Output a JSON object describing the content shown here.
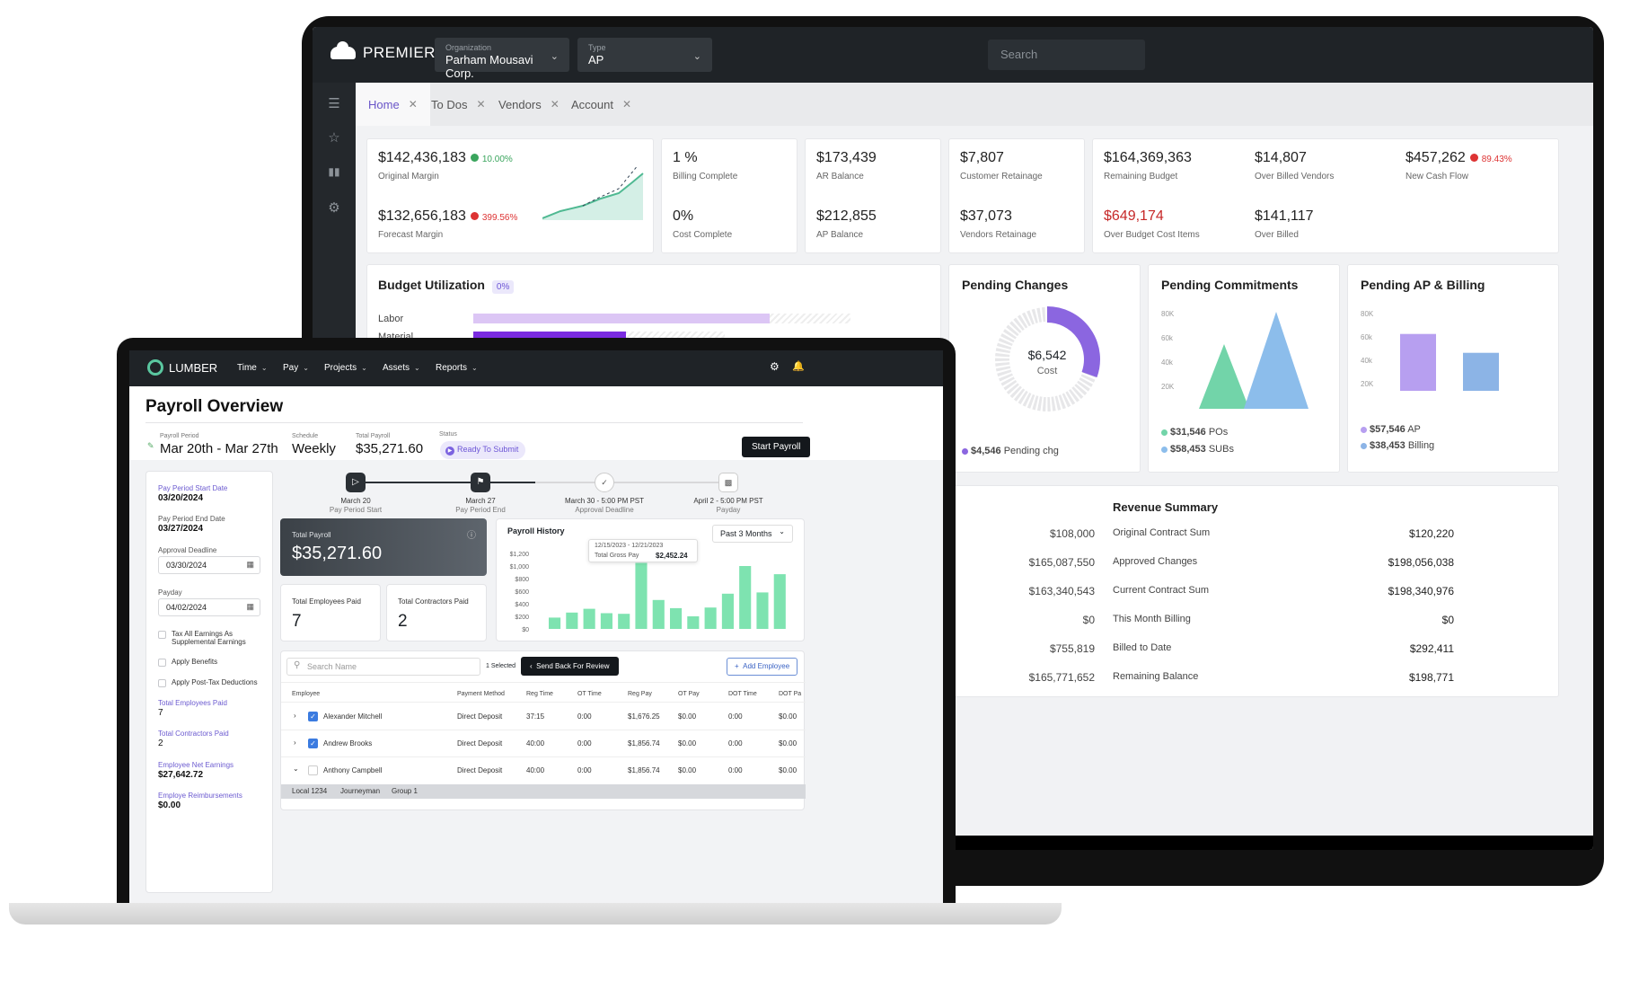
{
  "premier": {
    "brand": "PREMIER",
    "org_label": "Organization",
    "org_value": "Parham Mousavi Corp.",
    "type_label": "Type",
    "type_value": "AP",
    "search_placeholder": "Search",
    "tabs": [
      {
        "label": "Home",
        "active": true
      },
      {
        "label": "To Dos",
        "active": false
      },
      {
        "label": "Vendors",
        "active": false
      },
      {
        "label": "Account",
        "active": false
      }
    ],
    "kpi": {
      "original_margin": {
        "value": "$142,436,183",
        "label": "Original Margin",
        "pct": "10.00%"
      },
      "forecast_margin": {
        "value": "$132,656,183",
        "label": "Forecast Margin",
        "pct": "399.56%"
      },
      "billing_complete": {
        "value": "1 %",
        "label": "Billing Complete"
      },
      "cost_complete": {
        "value": "0%",
        "label": "Cost Complete"
      },
      "ar_balance": {
        "value": "$173,439",
        "label": "AR Balance"
      },
      "ap_balance": {
        "value": "$212,855",
        "label": "AP Balance"
      },
      "customer_retainage": {
        "value": "$7,807",
        "label": "Customer Retainage"
      },
      "vendors_retainage": {
        "value": "$37,073",
        "label": "Vendors Retainage"
      },
      "remaining_budget": {
        "value": "$164,369,363",
        "label": "Remaining Budget"
      },
      "over_budget_cost": {
        "value": "$649,174",
        "label": "Over Budget Cost Items"
      },
      "over_billed_vendors": {
        "value": "$14,807",
        "label": "Over Billed Vendors"
      },
      "over_billed": {
        "value": "$141,117",
        "label": "Over Billed"
      },
      "new_cash_flow": {
        "value": "$457,262",
        "label": "New Cash Flow",
        "pct": "89.43%"
      }
    },
    "budget": {
      "title": "Budget Utilization",
      "badge": "0%",
      "rows": [
        "Labor",
        "Material"
      ]
    },
    "pending_changes": {
      "title": "Pending Changes",
      "center_value": "$6,542",
      "center_label": "Cost",
      "legend": "$4,546",
      "legend_label": "Pending chg"
    },
    "pending_commitments": {
      "title": "Pending Commitments",
      "axis": [
        "80K",
        "60k",
        "40k",
        "20K"
      ],
      "legend1_v": "$31,546",
      "legend1_l": "POs",
      "legend2_v": "$58,453",
      "legend2_l": "SUBs"
    },
    "pending_ap": {
      "title": "Pending AP & Billing",
      "axis": [
        "80K",
        "60k",
        "40k",
        "20K"
      ],
      "legend1_v": "$57,546",
      "legend1_l": "AP",
      "legend2_v": "$38,453",
      "legend2_l": "Billing"
    },
    "left_values": [
      "$108,000",
      "$165,087,550",
      "$163,340,543",
      "$0",
      "$755,819",
      "$165,771,652"
    ],
    "revenue": {
      "title": "Revenue Summary",
      "rows": [
        {
          "label": "Original Contract Sum",
          "value": "$120,220"
        },
        {
          "label": "Approved Changes",
          "value": "$198,056,038"
        },
        {
          "label": "Current Contract Sum",
          "value": "$198,340,976"
        },
        {
          "label": "This Month Billing",
          "value": "$0"
        },
        {
          "label": "Billed to Date",
          "value": "$292,411"
        },
        {
          "label": "Remaining Balance",
          "value": "$198,771"
        }
      ]
    }
  },
  "lumber": {
    "brand": "LUMBER",
    "menu": [
      "Time",
      "Pay",
      "Projects",
      "Assets",
      "Reports"
    ],
    "title": "Payroll Overview",
    "period_label": "Payroll Period",
    "period_value": "Mar 20th - Mar 27th",
    "schedule_label": "Schedule",
    "schedule_value": "Weekly",
    "total_label": "Total Payroll",
    "total_value": "$35,271.60",
    "status_label": "Status",
    "status_value": "Ready To Submit",
    "start_button": "Start Payroll",
    "side": {
      "start_label": "Pay Period Start Date",
      "start_value": "03/20/2024",
      "end_label": "Pay Period End Date",
      "end_value": "03/27/2024",
      "approval_label": "Approval Deadline",
      "approval_value": "03/30/2024",
      "payday_label": "Payday",
      "payday_value": "04/02/2024",
      "cb1": "Tax All Earnings As Supplemental Earnings",
      "cb2": "Apply Benefits",
      "cb3": "Apply Post-Tax Deductions",
      "emp_label": "Total Employees Paid",
      "emp_value": "7",
      "con_label": "Total Contractors Paid",
      "con_value": "2",
      "net_label": "Employee Net Earnings",
      "net_value": "$27,642.72",
      "reimb_label": "Employe Reimbursements",
      "reimb_value": "$0.00"
    },
    "steps": [
      {
        "date": "March 20",
        "label": "Pay Period Start"
      },
      {
        "date": "March 27",
        "label": "Pay Period End"
      },
      {
        "date": "March 30 - 5:00 PM PST",
        "label": "Approval Deadline"
      },
      {
        "date": "April 2 - 5:00 PM PST",
        "label": "Payday"
      }
    ],
    "total_card_label": "Total Payroll",
    "total_card_value": "$35,271.60",
    "employees_paid_label": "Total Employees Paid",
    "employees_paid_value": "7",
    "contractors_paid_label": "Total Contractors Paid",
    "contractors_paid_value": "2",
    "history": {
      "title": "Payroll History",
      "range": "Past 3 Months",
      "tooltip_dates": "12/15/2023 - 12/21/2023",
      "tooltip_label": "Total Gross Pay",
      "tooltip_value": "$2,452.24",
      "axis": [
        "$1,200",
        "$1,000",
        "$800",
        "$600",
        "$400",
        "$200",
        "$0"
      ]
    },
    "table": {
      "search_placeholder": "Search Name",
      "selected": "1 Selected",
      "send_back": "Send Back For Review",
      "add_employee": "Add Employee",
      "headers": [
        "Employee",
        "Payment Method",
        "Reg Time",
        "OT Time",
        "Reg Pay",
        "OT Pay",
        "DOT Time",
        "DOT Pa"
      ],
      "rows": [
        {
          "name": "Alexander Mitchell",
          "method": "Direct Deposit",
          "reg_time": "37:15",
          "ot_time": "0:00",
          "reg_pay": "$1,676.25",
          "ot_pay": "$0.00",
          "dot_time": "0:00",
          "dot_pay": "$0.00"
        },
        {
          "name": "Andrew Brooks",
          "method": "Direct Deposit",
          "reg_time": "40:00",
          "ot_time": "0:00",
          "reg_pay": "$1,856.74",
          "ot_pay": "$0.00",
          "dot_time": "0:00",
          "dot_pay": "$0.00"
        },
        {
          "name": "Anthony Campbell",
          "method": "Direct Deposit",
          "reg_time": "40:00",
          "ot_time": "0:00",
          "reg_pay": "$1,856.74",
          "ot_pay": "$0.00",
          "dot_time": "0:00",
          "dot_pay": "$0.00"
        }
      ],
      "subrow": [
        "Local 1234",
        "Journeyman",
        "Group 1"
      ]
    }
  },
  "chart_data": [
    {
      "type": "bar",
      "title": "Payroll History",
      "ylim": [
        0,
        1200
      ],
      "values": [
        180,
        260,
        320,
        250,
        240,
        1050,
        460,
        330,
        200,
        340,
        560,
        1000,
        580,
        870
      ]
    },
    {
      "type": "bar",
      "title": "Pending AP & Billing",
      "categories": [
        "AP",
        "Billing"
      ],
      "values": [
        57546,
        38453
      ]
    }
  ]
}
